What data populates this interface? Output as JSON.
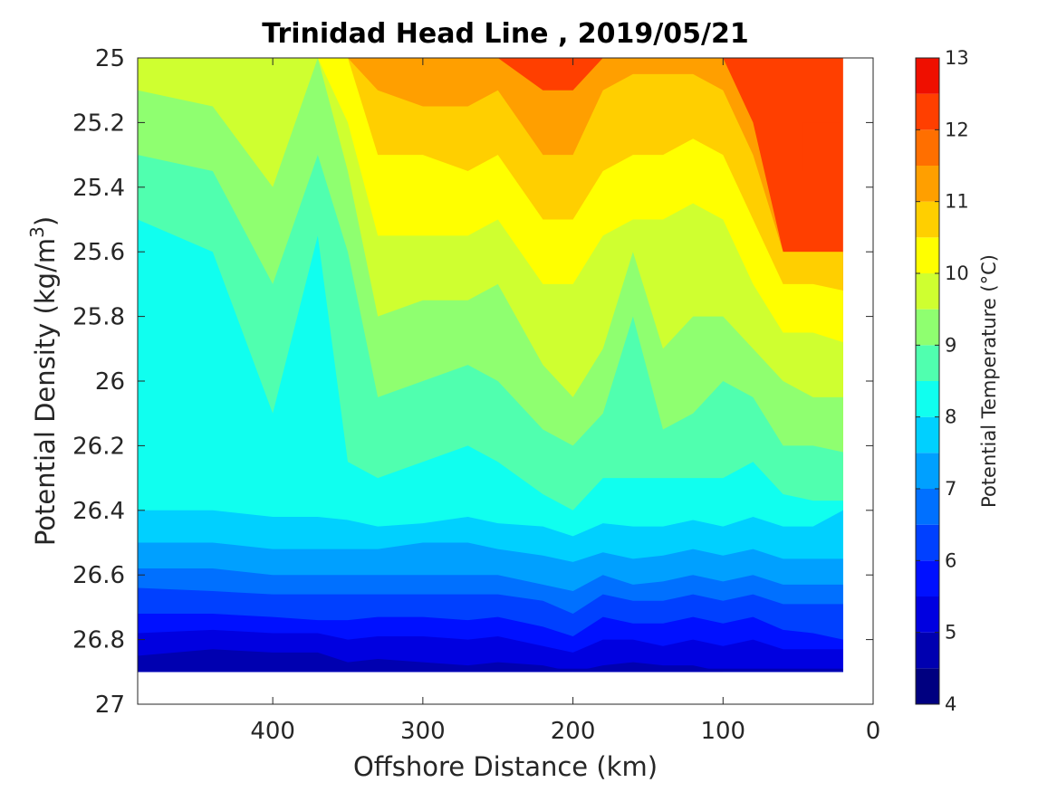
{
  "chart_data": {
    "type": "contour",
    "title": "Trinidad Head Line , 2019/05/21",
    "xlabel": "Offshore Distance (km)",
    "ylabel": "Potential Density (kg/m",
    "ylabel_sup": "3",
    "ylabel_close": ")",
    "xlim": [
      490,
      0
    ],
    "ylim": [
      25,
      27
    ],
    "y_reversed": true,
    "x_reversed": true,
    "x_ticks": [
      "400",
      "300",
      "200",
      "100",
      "0"
    ],
    "x_tick_values": [
      400,
      300,
      200,
      100,
      0
    ],
    "y_ticks": [
      "25",
      "25.2",
      "25.4",
      "25.6",
      "25.8",
      "26",
      "26.2",
      "26.4",
      "26.6",
      "26.8",
      "27"
    ],
    "y_tick_values": [
      25,
      25.2,
      25.4,
      25.6,
      25.8,
      26,
      26.2,
      26.4,
      26.6,
      26.8,
      27
    ],
    "colorbar": {
      "label": "Potential Temperature (°C)",
      "range": [
        4,
        13
      ],
      "levels": [
        4,
        4.5,
        5,
        5.5,
        6,
        6.5,
        7,
        7.5,
        8,
        8.5,
        9,
        9.5,
        10,
        10.5,
        11,
        11.5,
        12,
        12.5,
        13
      ],
      "tick_labels": [
        "4",
        "5",
        "6",
        "7",
        "8",
        "9",
        "10",
        "11",
        "12",
        "13"
      ],
      "tick_values": [
        4,
        5,
        6,
        7,
        8,
        9,
        10,
        11,
        12,
        13
      ],
      "colors": [
        "#000080",
        "#0000b0",
        "#0000e0",
        "#0010ff",
        "#0040ff",
        "#0070ff",
        "#00a0ff",
        "#00d0ff",
        "#10ffef",
        "#50ffaf",
        "#8fff70",
        "#cfff30",
        "#ffff00",
        "#ffcf00",
        "#ff9f00",
        "#ff6f00",
        "#ff3f00",
        "#ef0f00",
        "#bf0000"
      ]
    },
    "x_stations": [
      490,
      440,
      400,
      370,
      350,
      330,
      300,
      270,
      250,
      220,
      200,
      180,
      160,
      140,
      120,
      100,
      80,
      60,
      40,
      20
    ],
    "bands": [
      {
        "level": 12.5,
        "top": [
          25,
          25,
          25,
          25,
          25,
          25,
          25,
          25,
          25,
          25,
          25,
          25,
          25,
          25,
          25,
          25,
          25,
          25,
          25,
          25
        ],
        "note": ""
      },
      {
        "level": 12.0,
        "top": [
          25,
          25,
          25,
          25,
          25,
          25,
          25,
          25,
          25,
          25,
          25,
          25,
          25,
          25,
          25,
          25,
          25,
          25,
          25,
          25
        ]
      }
    ],
    "temperature_boundaries": [
      {
        "temp": 11.5,
        "depth": [
          25.0,
          25.0,
          25.0,
          25.0,
          25.0,
          25.0,
          25.0,
          25.0,
          25.0,
          25.1,
          25.1,
          25.0,
          25.0,
          25.0,
          25.0,
          25.0,
          25.2,
          25.6,
          25.6,
          25.6
        ]
      },
      {
        "temp": 11.0,
        "depth": [
          25.0,
          25.0,
          25.0,
          25.0,
          25.0,
          25.1,
          25.15,
          25.15,
          25.1,
          25.3,
          25.3,
          25.1,
          25.05,
          25.05,
          25.05,
          25.1,
          25.3,
          25.6,
          25.6,
          25.6
        ]
      },
      {
        "temp": 10.5,
        "depth": [
          25.0,
          25.0,
          25.0,
          25.0,
          25.0,
          25.3,
          25.3,
          25.35,
          25.3,
          25.5,
          25.5,
          25.35,
          25.3,
          25.3,
          25.25,
          25.3,
          25.5,
          25.7,
          25.7,
          25.72
        ]
      },
      {
        "temp": 10.0,
        "depth": [
          25.0,
          25.0,
          25.0,
          25.0,
          25.2,
          25.55,
          25.55,
          25.55,
          25.5,
          25.7,
          25.7,
          25.55,
          25.5,
          25.5,
          25.45,
          25.5,
          25.7,
          25.85,
          25.85,
          25.88
        ]
      },
      {
        "temp": 9.5,
        "depth": [
          25.1,
          25.15,
          25.4,
          25.0,
          25.35,
          25.8,
          25.75,
          25.75,
          25.7,
          25.95,
          26.05,
          25.9,
          25.6,
          25.9,
          25.8,
          25.8,
          25.9,
          26.0,
          26.05,
          26.05
        ]
      },
      {
        "temp": 9.0,
        "depth": [
          25.3,
          25.35,
          25.7,
          25.3,
          25.6,
          26.05,
          26.0,
          25.95,
          26.0,
          26.15,
          26.2,
          26.1,
          25.8,
          26.15,
          26.1,
          26.0,
          26.05,
          26.2,
          26.2,
          26.22
        ]
      },
      {
        "temp": 8.5,
        "depth": [
          25.5,
          25.6,
          26.1,
          25.55,
          26.25,
          26.3,
          26.25,
          26.2,
          26.25,
          26.35,
          26.4,
          26.3,
          26.3,
          26.3,
          26.3,
          26.3,
          26.25,
          26.35,
          26.37,
          26.37
        ]
      },
      {
        "temp": 8.0,
        "depth": [
          26.4,
          26.4,
          26.42,
          26.42,
          26.43,
          26.45,
          26.44,
          26.42,
          26.44,
          26.45,
          26.48,
          26.44,
          26.45,
          26.45,
          26.43,
          26.45,
          26.42,
          26.45,
          26.45,
          26.4
        ]
      },
      {
        "temp": 7.5,
        "depth": [
          26.5,
          26.5,
          26.52,
          26.52,
          26.52,
          26.52,
          26.5,
          26.5,
          26.52,
          26.54,
          26.56,
          26.53,
          26.55,
          26.54,
          26.52,
          26.54,
          26.52,
          26.55,
          26.55,
          26.55
        ]
      },
      {
        "temp": 7.0,
        "depth": [
          26.58,
          26.58,
          26.6,
          26.6,
          26.6,
          26.6,
          26.6,
          26.6,
          26.6,
          26.63,
          26.65,
          26.6,
          26.63,
          26.62,
          26.6,
          26.62,
          26.6,
          26.63,
          26.63,
          26.63
        ]
      },
      {
        "temp": 6.5,
        "depth": [
          26.64,
          26.65,
          26.66,
          26.66,
          26.66,
          26.66,
          26.66,
          26.66,
          26.66,
          26.68,
          26.72,
          26.66,
          26.68,
          26.68,
          26.66,
          26.68,
          26.66,
          26.69,
          26.69,
          26.69
        ]
      },
      {
        "temp": 6.0,
        "depth": [
          26.72,
          26.72,
          26.73,
          26.74,
          26.74,
          26.73,
          26.73,
          26.74,
          26.73,
          26.76,
          26.79,
          26.73,
          26.75,
          26.75,
          26.73,
          26.75,
          26.73,
          26.77,
          26.78,
          26.8
        ]
      },
      {
        "temp": 5.5,
        "depth": [
          26.78,
          26.77,
          26.78,
          26.78,
          26.8,
          26.79,
          26.79,
          26.8,
          26.79,
          26.82,
          26.84,
          26.8,
          26.8,
          26.82,
          26.8,
          26.82,
          26.8,
          26.83,
          26.83,
          26.83
        ]
      },
      {
        "temp": 5.0,
        "depth": [
          26.85,
          26.83,
          26.84,
          26.84,
          26.87,
          26.86,
          26.87,
          26.88,
          26.87,
          26.88,
          26.9,
          26.88,
          26.87,
          26.88,
          26.88,
          26.9,
          26.9,
          26.9,
          26.9,
          26.9
        ]
      }
    ],
    "data_bottom": 26.9,
    "warm_patch": {
      "temp": 12.0,
      "x": [
        47,
        47,
        22,
        22
      ],
      "y": [
        25.2,
        25.35,
        25.35,
        25.2
      ]
    }
  }
}
